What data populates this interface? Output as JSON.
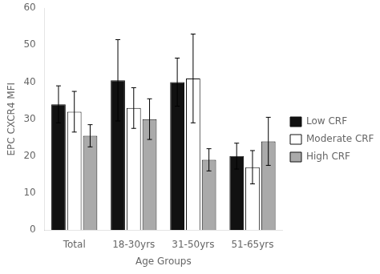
{
  "chart_data": {
    "type": "bar",
    "xlabel": "Age Groups",
    "ylabel": "EPC CXCR4 MFI",
    "categories": [
      "Total",
      "18-30yrs",
      "31-50yrs",
      "51-65yrs"
    ],
    "series": [
      {
        "name": "Low CRF",
        "color": "#111111",
        "values": [
          34.0,
          40.5,
          40.0,
          20.0
        ],
        "errors": [
          5.0,
          11.0,
          6.5,
          3.5
        ]
      },
      {
        "name": "Moderate CRF",
        "color": "#ffffff",
        "values": [
          32.0,
          33.0,
          41.0,
          17.0
        ],
        "errors": [
          5.5,
          5.5,
          12.0,
          4.5
        ]
      },
      {
        "name": "High CRF",
        "color": "#aaaaaa",
        "values": [
          25.5,
          30.0,
          19.0,
          24.0
        ],
        "errors": [
          3.0,
          5.5,
          3.0,
          6.5
        ]
      }
    ],
    "ylim": [
      0,
      60
    ],
    "yticks": [
      0,
      10,
      20,
      30,
      40,
      50,
      60
    ],
    "grid": false,
    "legend": "right"
  }
}
